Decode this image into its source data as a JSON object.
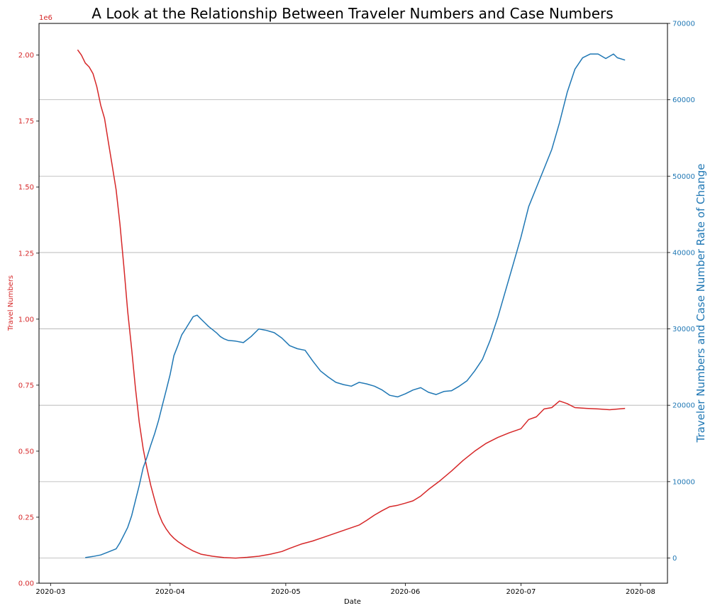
{
  "chart_data": {
    "type": "line",
    "title": "A Look at the Relationship Between Traveler Numbers and Case Numbers",
    "xlabel": "Date",
    "ylabel_left": "Travel Numbers",
    "ylabel_right": "Traveler Numbers and Case Number Rate of Change",
    "left_axis_offset_label": "1e6",
    "left_color": "#d62728",
    "right_color": "#1f77b4",
    "xlim": [
      "2020-02-27",
      "2020-08-08"
    ],
    "ylim_left": [
      0,
      2.12
    ],
    "ylim_right": [
      -3300,
      70000
    ],
    "x_ticks": [
      "2020-03",
      "2020-04",
      "2020-05",
      "2020-06",
      "2020-07",
      "2020-08"
    ],
    "y_ticks_left": [
      "0.00",
      "0.25",
      "0.50",
      "0.75",
      "1.00",
      "1.25",
      "1.50",
      "1.75",
      "2.00"
    ],
    "y_ticks_right": [
      "0",
      "10000",
      "20000",
      "30000",
      "40000",
      "50000",
      "60000",
      "70000"
    ],
    "grid": "horizontal lines at right-axis ticks",
    "series": [
      {
        "axis": "left",
        "points": [
          [
            "2020-03-08",
            2.02
          ],
          [
            "2020-03-09",
            2.0
          ],
          [
            "2020-03-10",
            1.97
          ],
          [
            "2020-03-11",
            1.955
          ],
          [
            "2020-03-12",
            1.93
          ],
          [
            "2020-03-13",
            1.88
          ],
          [
            "2020-03-14",
            1.81
          ],
          [
            "2020-03-15",
            1.76
          ],
          [
            "2020-03-16",
            1.67
          ],
          [
            "2020-03-17",
            1.58
          ],
          [
            "2020-03-18",
            1.49
          ],
          [
            "2020-03-19",
            1.36
          ],
          [
            "2020-03-20",
            1.2
          ],
          [
            "2020-03-21",
            1.03
          ],
          [
            "2020-03-22",
            0.89
          ],
          [
            "2020-03-23",
            0.74
          ],
          [
            "2020-03-24",
            0.61
          ],
          [
            "2020-03-25",
            0.51
          ],
          [
            "2020-03-26",
            0.435
          ],
          [
            "2020-03-27",
            0.37
          ],
          [
            "2020-03-28",
            0.315
          ],
          [
            "2020-03-29",
            0.265
          ],
          [
            "2020-03-30",
            0.23
          ],
          [
            "2020-03-31",
            0.205
          ],
          [
            "2020-04-01",
            0.185
          ],
          [
            "2020-04-02",
            0.17
          ],
          [
            "2020-04-03",
            0.158
          ],
          [
            "2020-04-05",
            0.138
          ],
          [
            "2020-04-07",
            0.122
          ],
          [
            "2020-04-09",
            0.11
          ],
          [
            "2020-04-12",
            0.102
          ],
          [
            "2020-04-15",
            0.097
          ],
          [
            "2020-04-18",
            0.095
          ],
          [
            "2020-04-21",
            0.098
          ],
          [
            "2020-04-24",
            0.102
          ],
          [
            "2020-04-27",
            0.11
          ],
          [
            "2020-04-30",
            0.12
          ],
          [
            "2020-05-02",
            0.132
          ],
          [
            "2020-05-05",
            0.148
          ],
          [
            "2020-05-08",
            0.16
          ],
          [
            "2020-05-11",
            0.175
          ],
          [
            "2020-05-14",
            0.19
          ],
          [
            "2020-05-17",
            0.205
          ],
          [
            "2020-05-20",
            0.22
          ],
          [
            "2020-05-22",
            0.238
          ],
          [
            "2020-05-24",
            0.258
          ],
          [
            "2020-05-26",
            0.275
          ],
          [
            "2020-05-28",
            0.29
          ],
          [
            "2020-05-30",
            0.295
          ],
          [
            "2020-06-01",
            0.303
          ],
          [
            "2020-06-03",
            0.312
          ],
          [
            "2020-06-05",
            0.33
          ],
          [
            "2020-06-07",
            0.355
          ],
          [
            "2020-06-10",
            0.388
          ],
          [
            "2020-06-13",
            0.425
          ],
          [
            "2020-06-16",
            0.465
          ],
          [
            "2020-06-19",
            0.5
          ],
          [
            "2020-06-22",
            0.53
          ],
          [
            "2020-06-25",
            0.552
          ],
          [
            "2020-06-28",
            0.57
          ],
          [
            "2020-07-01",
            0.585
          ],
          [
            "2020-07-03",
            0.62
          ],
          [
            "2020-07-05",
            0.63
          ],
          [
            "2020-07-07",
            0.66
          ],
          [
            "2020-07-09",
            0.665
          ],
          [
            "2020-07-11",
            0.69
          ],
          [
            "2020-07-13",
            0.68
          ],
          [
            "2020-07-15",
            0.665
          ],
          [
            "2020-07-18",
            0.662
          ],
          [
            "2020-07-21",
            0.66
          ],
          [
            "2020-07-24",
            0.657
          ],
          [
            "2020-07-28",
            0.662
          ]
        ]
      },
      {
        "axis": "right",
        "points": [
          [
            "2020-03-10",
            50
          ],
          [
            "2020-03-12",
            200
          ],
          [
            "2020-03-14",
            400
          ],
          [
            "2020-03-16",
            800
          ],
          [
            "2020-03-18",
            1200
          ],
          [
            "2020-03-19",
            2000
          ],
          [
            "2020-03-20",
            3000
          ],
          [
            "2020-03-21",
            4000
          ],
          [
            "2020-03-22",
            5500
          ],
          [
            "2020-03-23",
            7500
          ],
          [
            "2020-03-24",
            9500
          ],
          [
            "2020-03-25",
            11800
          ],
          [
            "2020-03-26",
            13200
          ],
          [
            "2020-03-27",
            14800
          ],
          [
            "2020-03-28",
            16300
          ],
          [
            "2020-03-29",
            18000
          ],
          [
            "2020-03-30",
            20000
          ],
          [
            "2020-03-31",
            22000
          ],
          [
            "2020-04-01",
            24000
          ],
          [
            "2020-04-02",
            26500
          ],
          [
            "2020-04-03",
            27800
          ],
          [
            "2020-04-04",
            29200
          ],
          [
            "2020-04-05",
            30000
          ],
          [
            "2020-04-06",
            30800
          ],
          [
            "2020-04-07",
            31600
          ],
          [
            "2020-04-08",
            31800
          ],
          [
            "2020-04-09",
            31300
          ],
          [
            "2020-04-10",
            30800
          ],
          [
            "2020-04-11",
            30300
          ],
          [
            "2020-04-12",
            29900
          ],
          [
            "2020-04-13",
            29500
          ],
          [
            "2020-04-14",
            29000
          ],
          [
            "2020-04-15",
            28700
          ],
          [
            "2020-04-16",
            28500
          ],
          [
            "2020-04-18",
            28400
          ],
          [
            "2020-04-20",
            28200
          ],
          [
            "2020-04-22",
            29000
          ],
          [
            "2020-04-24",
            30000
          ],
          [
            "2020-04-26",
            29800
          ],
          [
            "2020-04-28",
            29500
          ],
          [
            "2020-04-30",
            28800
          ],
          [
            "2020-05-02",
            27800
          ],
          [
            "2020-05-04",
            27400
          ],
          [
            "2020-05-06",
            27200
          ],
          [
            "2020-05-08",
            25800
          ],
          [
            "2020-05-10",
            24500
          ],
          [
            "2020-05-12",
            23700
          ],
          [
            "2020-05-14",
            23000
          ],
          [
            "2020-05-16",
            22700
          ],
          [
            "2020-05-18",
            22500
          ],
          [
            "2020-05-20",
            23000
          ],
          [
            "2020-05-22",
            22800
          ],
          [
            "2020-05-24",
            22500
          ],
          [
            "2020-05-26",
            22000
          ],
          [
            "2020-05-28",
            21300
          ],
          [
            "2020-05-30",
            21100
          ],
          [
            "2020-06-01",
            21500
          ],
          [
            "2020-06-03",
            22000
          ],
          [
            "2020-06-05",
            22300
          ],
          [
            "2020-06-07",
            21700
          ],
          [
            "2020-06-09",
            21400
          ],
          [
            "2020-06-11",
            21800
          ],
          [
            "2020-06-13",
            21900
          ],
          [
            "2020-06-15",
            22500
          ],
          [
            "2020-06-17",
            23200
          ],
          [
            "2020-06-19",
            24500
          ],
          [
            "2020-06-21",
            26000
          ],
          [
            "2020-06-23",
            28500
          ],
          [
            "2020-06-25",
            31500
          ],
          [
            "2020-06-27",
            35000
          ],
          [
            "2020-06-29",
            38500
          ],
          [
            "2020-07-01",
            42000
          ],
          [
            "2020-07-03",
            46000
          ],
          [
            "2020-07-05",
            48500
          ],
          [
            "2020-07-07",
            51000
          ],
          [
            "2020-07-09",
            53500
          ],
          [
            "2020-07-11",
            57000
          ],
          [
            "2020-07-13",
            61000
          ],
          [
            "2020-07-15",
            64000
          ],
          [
            "2020-07-17",
            65500
          ],
          [
            "2020-07-19",
            66000
          ],
          [
            "2020-07-21",
            66000
          ],
          [
            "2020-07-23",
            65400
          ],
          [
            "2020-07-25",
            66000
          ],
          [
            "2020-07-26",
            65500
          ],
          [
            "2020-07-28",
            65200
          ]
        ]
      }
    ]
  }
}
